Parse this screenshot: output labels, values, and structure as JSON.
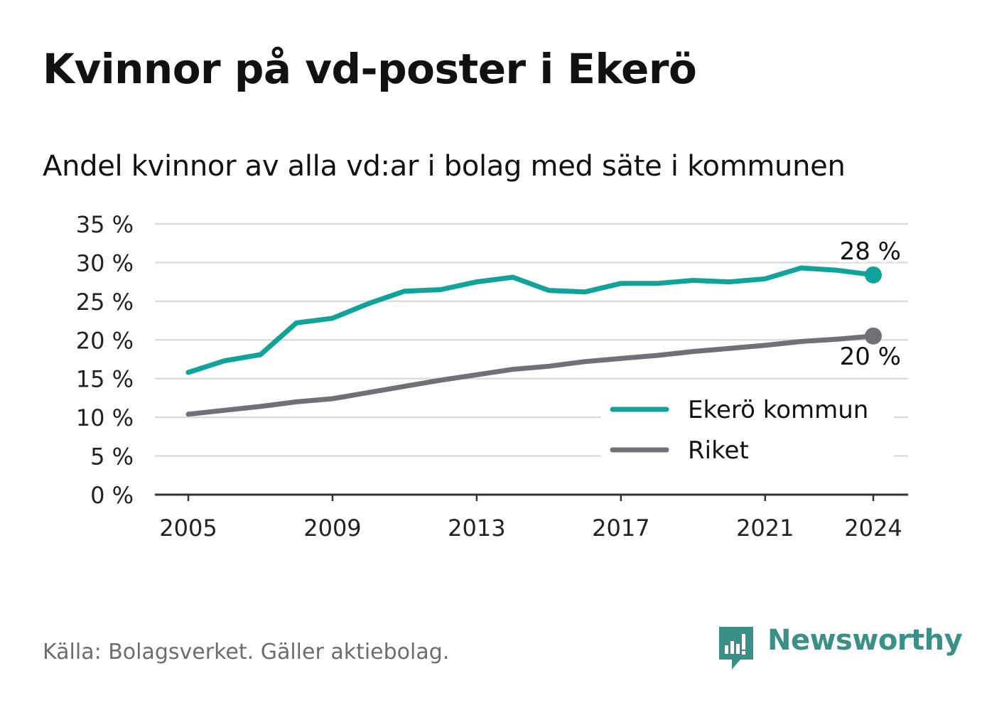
{
  "chart_data": {
    "type": "line",
    "title": "Kvinnor på vd-poster i Ekerö",
    "subtitle": "Andel kvinnor av alla vd:ar i bolag med säte i kommunen",
    "xlabel": "",
    "ylabel": "",
    "x": [
      2005,
      2006,
      2007,
      2008,
      2009,
      2010,
      2011,
      2012,
      2013,
      2014,
      2015,
      2016,
      2017,
      2018,
      2019,
      2020,
      2021,
      2022,
      2023,
      2024
    ],
    "x_ticks": [
      "2005",
      "2009",
      "2013",
      "2017",
      "2021",
      "2024"
    ],
    "y_ticks": [
      "0 %",
      "5 %",
      "10 %",
      "15 %",
      "20 %",
      "25 %",
      "30 %",
      "35 %"
    ],
    "ylim": [
      0,
      35
    ],
    "grid": true,
    "legend_position": "bottom-right",
    "series": [
      {
        "name": "Ekerö kommun",
        "color": "#0fa39a",
        "values": [
          15.8,
          17.3,
          18.1,
          22.2,
          22.8,
          24.7,
          26.3,
          26.5,
          27.5,
          28.1,
          26.4,
          26.2,
          27.3,
          27.3,
          27.7,
          27.5,
          27.9,
          29.3,
          29.0,
          28.4
        ],
        "end_label": "28 %"
      },
      {
        "name": "Riket",
        "color": "#727077",
        "values": [
          10.4,
          10.9,
          11.4,
          12.0,
          12.4,
          13.2,
          14.0,
          14.8,
          15.5,
          16.2,
          16.6,
          17.2,
          17.6,
          18.0,
          18.5,
          18.9,
          19.3,
          19.8,
          20.1,
          20.5
        ],
        "end_label": "20 %"
      }
    ]
  },
  "footer": {
    "source": "Källa: Bolagsverket. Gäller aktiebolag.",
    "brand": "Newsworthy",
    "brand_icon": "bar-chart-speech-bubble-icon",
    "brand_color": "#3a8f86"
  }
}
